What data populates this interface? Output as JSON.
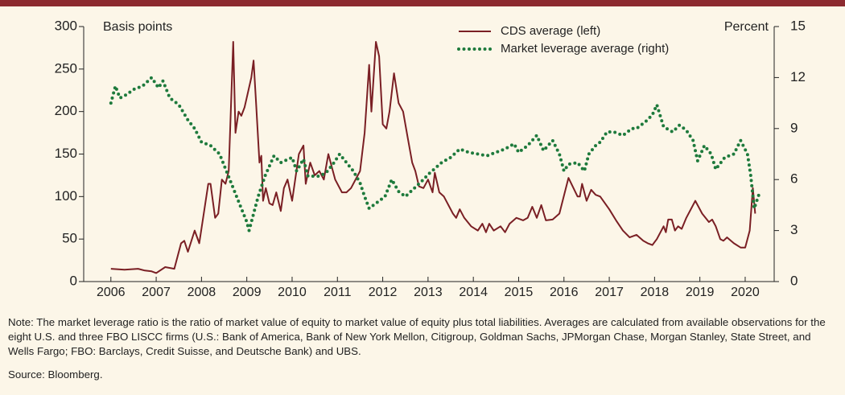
{
  "chart_data": {
    "type": "line",
    "left_axis_label": "Basis points",
    "right_axis_label": "Percent",
    "note": "Note: The market leverage ratio is the ratio of market value of equity to market value of equity plus total liabilities. Averages are calculated from available observations for the eight U.S. and three FBO LISCC firms (U.S.: Bank of America, Bank of New York Mellon, Citigroup, Goldman Sachs, JPMorgan Chase, Morgan Stanley, State Street, and Wells Fargo; FBO: Barclays, Credit Suisse, and Deutsche Bank) and UBS.",
    "source": "Source: Bloomberg.",
    "xlim": [
      2005.4,
      2020.64
    ],
    "xticks": [
      2006,
      2007,
      2008,
      2009,
      2010,
      2011,
      2012,
      2013,
      2014,
      2015,
      2016,
      2017,
      2018,
      2019,
      2020
    ],
    "ylim": [
      0,
      300
    ],
    "yticks": [
      0,
      50,
      100,
      150,
      200,
      250,
      300
    ],
    "y2lim": [
      0,
      15
    ],
    "y2ticks": [
      0,
      3,
      6,
      9,
      12,
      15
    ],
    "series": [
      {
        "name": "CDS average (left)",
        "color": "#7a1f24",
        "style": "solid",
        "x": [
          2006.0,
          2006.3,
          2006.6,
          2006.75,
          2006.9,
          2007.0,
          2007.2,
          2007.4,
          2007.55,
          2007.62,
          2007.7,
          2007.85,
          2007.95,
          2008.05,
          2008.15,
          2008.2,
          2008.3,
          2008.37,
          2008.45,
          2008.53,
          2008.6,
          2008.7,
          2008.75,
          2008.82,
          2008.88,
          2008.95,
          2009.1,
          2009.15,
          2009.2,
          2009.28,
          2009.32,
          2009.36,
          2009.42,
          2009.5,
          2009.57,
          2009.65,
          2009.75,
          2009.82,
          2009.9,
          2010.0,
          2010.15,
          2010.25,
          2010.3,
          2010.4,
          2010.5,
          2010.6,
          2010.7,
          2010.8,
          2010.95,
          2011.1,
          2011.2,
          2011.3,
          2011.5,
          2011.6,
          2011.7,
          2011.75,
          2011.85,
          2011.92,
          2012.0,
          2012.08,
          2012.15,
          2012.25,
          2012.35,
          2012.45,
          2012.55,
          2012.65,
          2012.72,
          2012.8,
          2012.9,
          2013.0,
          2013.1,
          2013.15,
          2013.25,
          2013.35,
          2013.55,
          2013.62,
          2013.7,
          2013.8,
          2013.95,
          2014.1,
          2014.2,
          2014.28,
          2014.35,
          2014.45,
          2014.6,
          2014.7,
          2014.8,
          2014.95,
          2015.1,
          2015.2,
          2015.3,
          2015.4,
          2015.5,
          2015.6,
          2015.75,
          2015.9,
          2016.1,
          2016.3,
          2016.35,
          2016.4,
          2016.5,
          2016.6,
          2016.7,
          2016.8,
          2017.0,
          2017.15,
          2017.3,
          2017.45,
          2017.6,
          2017.75,
          2017.85,
          2017.95,
          2018.05,
          2018.2,
          2018.25,
          2018.3,
          2018.38,
          2018.45,
          2018.52,
          2018.6,
          2018.7,
          2018.9,
          2019.05,
          2019.2,
          2019.27,
          2019.35,
          2019.45,
          2019.52,
          2019.6,
          2019.75,
          2019.9,
          2020.0,
          2020.1,
          2020.17,
          2020.22
        ],
        "values": [
          15,
          14,
          15,
          13,
          12,
          10,
          17,
          15,
          45,
          48,
          35,
          60,
          45,
          80,
          115,
          115,
          75,
          80,
          120,
          115,
          130,
          282,
          175,
          200,
          195,
          205,
          240,
          260,
          215,
          140,
          148,
          95,
          110,
          92,
          90,
          105,
          83,
          110,
          120,
          95,
          150,
          160,
          115,
          140,
          125,
          130,
          120,
          150,
          120,
          105,
          105,
          110,
          130,
          175,
          255,
          200,
          282,
          265,
          185,
          180,
          200,
          245,
          210,
          200,
          170,
          140,
          130,
          112,
          110,
          120,
          105,
          128,
          105,
          100,
          80,
          75,
          85,
          75,
          65,
          60,
          68,
          58,
          68,
          60,
          65,
          58,
          68,
          75,
          72,
          75,
          88,
          75,
          90,
          72,
          73,
          80,
          122,
          100,
          100,
          115,
          95,
          108,
          102,
          100,
          85,
          72,
          60,
          52,
          55,
          48,
          45,
          43,
          50,
          65,
          58,
          73,
          73,
          60,
          65,
          62,
          75,
          95,
          80,
          70,
          73,
          65,
          50,
          48,
          52,
          45,
          40,
          40,
          60,
          110,
          80
        ]
      },
      {
        "name": "Market leverage average (right)",
        "color": "#1e7a3c",
        "style": "dotted",
        "axis": "y2",
        "x": [
          2006.0,
          2006.1,
          2006.2,
          2006.35,
          2006.5,
          2006.7,
          2006.9,
          2007.05,
          2007.15,
          2007.3,
          2007.5,
          2007.7,
          2007.85,
          2008.0,
          2008.2,
          2008.4,
          2008.55,
          2008.7,
          2008.85,
          2009.0,
          2009.05,
          2009.25,
          2009.4,
          2009.6,
          2009.75,
          2010.0,
          2010.1,
          2010.25,
          2010.35,
          2010.6,
          2010.75,
          2010.9,
          2011.05,
          2011.2,
          2011.35,
          2011.5,
          2011.6,
          2011.7,
          2011.85,
          2012.05,
          2012.2,
          2012.35,
          2012.5,
          2012.7,
          2012.9,
          2013.0,
          2013.3,
          2013.5,
          2013.7,
          2013.9,
          2014.1,
          2014.3,
          2014.5,
          2014.7,
          2014.9,
          2015.0,
          2015.2,
          2015.4,
          2015.55,
          2015.75,
          2015.9,
          2016.0,
          2016.1,
          2016.3,
          2016.45,
          2016.55,
          2016.7,
          2016.8,
          2016.95,
          2017.1,
          2017.3,
          2017.5,
          2017.6,
          2017.8,
          2017.95,
          2018.05,
          2018.2,
          2018.4,
          2018.55,
          2018.7,
          2018.85,
          2018.95,
          2019.1,
          2019.25,
          2019.35,
          2019.55,
          2019.75,
          2019.9,
          2020.05,
          2020.12,
          2020.2,
          2020.3
        ],
        "values": [
          10.5,
          11.5,
          10.8,
          11,
          11.3,
          11.5,
          12,
          11.4,
          11.8,
          10.8,
          10.4,
          9.5,
          9,
          8.2,
          8,
          7.5,
          6.5,
          5.5,
          4.5,
          3.5,
          3,
          5,
          6.2,
          7.4,
          7,
          7.3,
          6.5,
          7.2,
          6.2,
          6.2,
          6.4,
          6.9,
          7.5,
          7,
          6.5,
          5.8,
          5,
          4.3,
          4.6,
          5,
          6,
          5.3,
          5,
          5.5,
          6,
          6.3,
          7,
          7.3,
          7.8,
          7.6,
          7.5,
          7.4,
          7.6,
          7.8,
          8.1,
          7.6,
          8,
          8.6,
          7.7,
          8.3,
          7.5,
          6.5,
          6.9,
          7,
          6.5,
          7.5,
          8,
          8.2,
          8.8,
          8.8,
          8.6,
          9,
          9,
          9.4,
          9.8,
          10.4,
          9.1,
          8.8,
          9.2,
          8.9,
          8.3,
          7.1,
          8,
          7.5,
          6.6,
          7.3,
          7.5,
          8.3,
          7.5,
          6.3,
          4.3,
          5.1
        ]
      }
    ]
  }
}
